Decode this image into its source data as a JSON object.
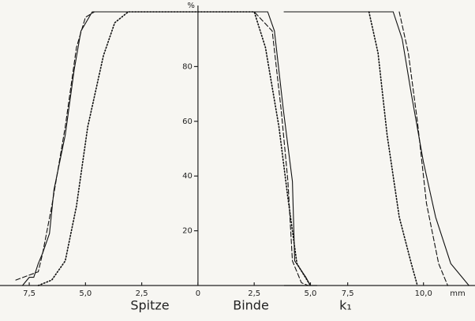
{
  "chart_data": [
    {
      "type": "line",
      "xlim": [
        -8.8,
        5.3
      ],
      "ylim": [
        0,
        100
      ],
      "xticks": [
        {
          "value": -7.5,
          "label": "7,5"
        },
        {
          "value": -5,
          "label": "5,0"
        },
        {
          "value": -2.5,
          "label": "2,5"
        },
        0,
        {
          "value": 2.5,
          "label": "2,5"
        },
        {
          "value": 5,
          "label": "5,0"
        }
      ],
      "yticks": [
        20,
        40,
        60,
        80
      ],
      "ylabel": "%",
      "annotations": [
        "Spitze",
        "Binde"
      ],
      "series": [
        {
          "color": "#111",
          "dash": "solid",
          "x": [
            -7.8,
            -7.5,
            -7.3,
            -7.1,
            -6.9,
            -6.6,
            -6.4,
            -5.9,
            -5.5,
            -5.2,
            -4.7,
            3.1,
            3.4,
            3.8,
            4.2,
            4.3,
            4.8,
            5.0
          ],
          "values": [
            0,
            3,
            3,
            8,
            12,
            19,
            35,
            55,
            79,
            93,
            100,
            100,
            93,
            64,
            38,
            9,
            3,
            0
          ]
        },
        {
          "color": "#111",
          "dash": "dashed",
          "x": [
            -8.1,
            -7.1,
            -6.9,
            -6.5,
            -5.9,
            -5.4,
            -5.0,
            -4.6,
            2.5,
            3.3,
            3.7,
            4.0,
            4.2,
            4.6,
            4.9
          ],
          "values": [
            2,
            5,
            12,
            29,
            58,
            87,
            98,
            100,
            100,
            93,
            64,
            38,
            9,
            1,
            0
          ]
        },
        {
          "color": "#111",
          "dash": "dotted",
          "x": [
            -7.1,
            -6.5,
            -5.9,
            -5.4,
            -4.9,
            -4.2,
            -3.7,
            -3.1,
            2.5,
            3.0,
            3.6,
            4.0,
            4.4,
            5.0
          ],
          "values": [
            0,
            2,
            9,
            29,
            58,
            84,
            96,
            100,
            100,
            87,
            58,
            32,
            8,
            0
          ]
        }
      ]
    },
    {
      "type": "line",
      "xlim": [
        5.4,
        11.7
      ],
      "ylim": [
        0,
        100
      ],
      "xticks": [
        {
          "value": 7.5,
          "label": "7,5"
        },
        {
          "value": 10,
          "label": "10,0"
        }
      ],
      "xlabel": "mm",
      "annotations": [
        "k₁"
      ],
      "series": [
        {
          "color": "#111",
          "dash": "solid",
          "x": [
            5.4,
            9.0,
            9.3,
            9.6,
            10.0,
            10.4,
            10.9,
            11.5
          ],
          "values": [
            100,
            100,
            90,
            70,
            45,
            25,
            8,
            0
          ]
        },
        {
          "color": "#111",
          "dash": "dashed",
          "x": [
            9.2,
            9.5,
            9.8,
            10.1,
            10.5,
            10.8
          ],
          "values": [
            100,
            85,
            60,
            30,
            8,
            0
          ]
        },
        {
          "color": "#111",
          "dash": "dotted",
          "x": [
            8.2,
            8.5,
            8.8,
            9.2,
            9.6,
            9.8
          ],
          "values": [
            100,
            85,
            55,
            25,
            8,
            0
          ]
        }
      ]
    }
  ]
}
